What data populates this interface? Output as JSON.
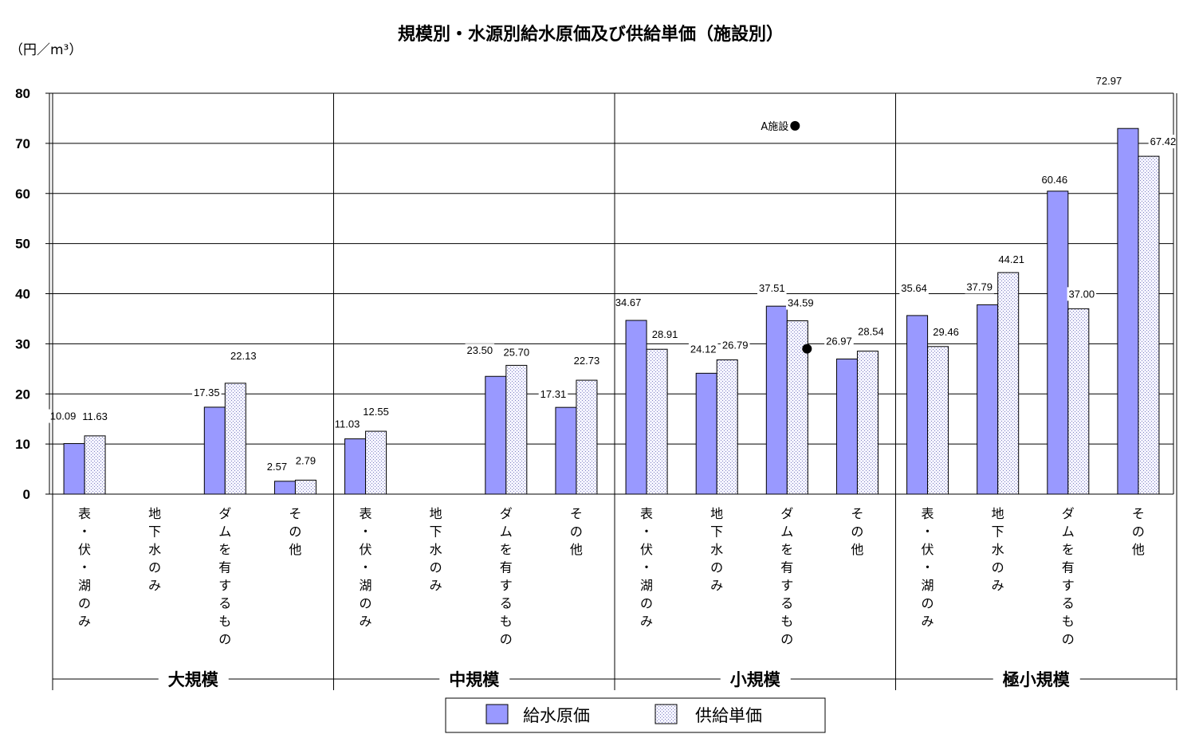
{
  "chart_data": {
    "type": "bar",
    "title": "規模別・水源別給水原価及び供給単価（施設別）",
    "ylabel": "（円／m³）",
    "ylim": [
      0,
      80
    ],
    "yticks": [
      "0",
      "10",
      "20",
      "30",
      "40",
      "50",
      "60",
      "70",
      "80"
    ],
    "grid": true,
    "legend_position": "bottom",
    "groups": [
      "大規模",
      "中規模",
      "小規模",
      "極小規模"
    ],
    "categories": [
      {
        "group": 0,
        "label": "表・伏・湖のみ"
      },
      {
        "group": 0,
        "label": "地下水のみ"
      },
      {
        "group": 0,
        "label": "ダムを有するもの"
      },
      {
        "group": 0,
        "label": "その他"
      },
      {
        "group": 1,
        "label": "表・伏・湖のみ"
      },
      {
        "group": 1,
        "label": "地下水のみ"
      },
      {
        "group": 1,
        "label": "ダムを有するもの"
      },
      {
        "group": 1,
        "label": "その他"
      },
      {
        "group": 2,
        "label": "表・伏・湖のみ"
      },
      {
        "group": 2,
        "label": "地下水のみ"
      },
      {
        "group": 2,
        "label": "ダムを有するもの"
      },
      {
        "group": 2,
        "label": "その他"
      },
      {
        "group": 3,
        "label": "表・伏・湖のみ"
      },
      {
        "group": 3,
        "label": "地下水のみ"
      },
      {
        "group": 3,
        "label": "ダムを有するもの"
      },
      {
        "group": 3,
        "label": "その他"
      }
    ],
    "series": [
      {
        "name": "給水原価",
        "color": "#9999ff",
        "values": [
          10.09,
          null,
          17.35,
          2.57,
          11.03,
          null,
          23.5,
          17.31,
          34.67,
          24.12,
          37.51,
          26.97,
          35.64,
          37.79,
          60.46,
          72.97
        ],
        "labels": [
          "10.09",
          null,
          "17.35",
          "2.57",
          "11.03",
          null,
          "23.50",
          "17.31",
          "34.67",
          "24.12",
          "37.51",
          "26.97",
          "35.64",
          "37.79",
          "60.46",
          "72.97"
        ]
      },
      {
        "name": "供給単価",
        "color": "#e8e8ff",
        "values": [
          11.63,
          null,
          22.13,
          2.79,
          12.55,
          null,
          25.7,
          22.73,
          28.91,
          26.79,
          34.59,
          28.54,
          29.46,
          44.21,
          37.0,
          67.42
        ],
        "labels": [
          "11.63",
          null,
          "22.13",
          "2.79",
          "12.55",
          null,
          "25.70",
          "22.73",
          "28.91",
          "26.79",
          "34.59",
          "28.54",
          "29.46",
          "44.21",
          "37.00",
          "67.42"
        ]
      }
    ],
    "annotations": [
      {
        "text": "A施設",
        "category": 10,
        "series": 0,
        "value": 73.5
      },
      {
        "text": "",
        "category": 10,
        "series": 1,
        "value": 29.0
      }
    ]
  }
}
